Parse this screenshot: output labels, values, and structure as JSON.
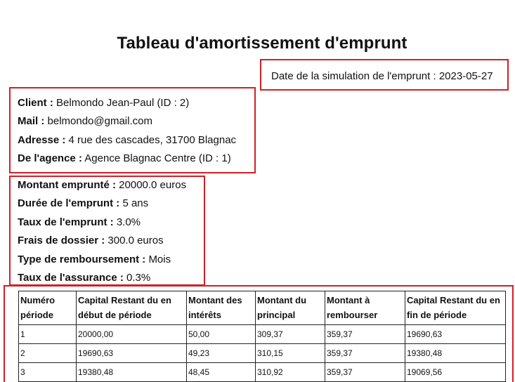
{
  "title": "Tableau d'amortissement d'emprunt",
  "simulation": {
    "label": "Date de la simulation de l'emprunt :",
    "value": "2023-05-27"
  },
  "client": {
    "client_label": "Client :",
    "client_value": "Belmondo Jean-Paul (ID : 2)",
    "mail_label": "Mail :",
    "mail_value": "belmondo@gmail.com",
    "address_label": "Adresse :",
    "address_value": "4 rue des cascades, 31700 Blagnac",
    "agency_label": "De l'agence :",
    "agency_value": "Agence Blagnac Centre (ID : 1)"
  },
  "loan": {
    "amount_label": "Montant emprunté :",
    "amount_value": "20000.0 euros",
    "duration_label": "Durée de l'emprunt :",
    "duration_value": "5 ans",
    "rate_label": "Taux de l'emprunt :",
    "rate_value": "3.0%",
    "fees_label": "Frais de dossier :",
    "fees_value": "300.0 euros",
    "repayment_label": "Type de remboursement :",
    "repayment_value": "Mois",
    "insurance_label": "Taux de l'assurance :",
    "insurance_value": "0.3%"
  },
  "table": {
    "headers": [
      "Numéro période",
      "Capital Restant du en début de période",
      "Montant des intérêts",
      "Montant du principal",
      "Montant à rembourser",
      "Capital Restant du en fin de période"
    ],
    "rows": [
      [
        "1",
        "20000,00",
        "50,00",
        "309,37",
        "359,37",
        "19690,63"
      ],
      [
        "2",
        "19690,63",
        "49,23",
        "310,15",
        "359,37",
        "19380,48"
      ],
      [
        "3",
        "19380,48",
        "48,45",
        "310,92",
        "359,37",
        "19069,56"
      ]
    ]
  }
}
